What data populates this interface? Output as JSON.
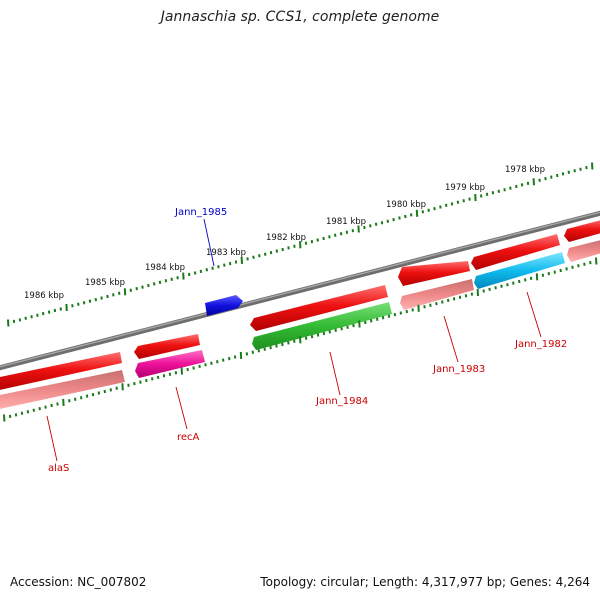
{
  "title": "Jannaschia sp. CCS1, complete genome",
  "accession": "Accession: NC_007802",
  "topology": "Topology: circular; Length: 4,317,977 bp; Genes: 4,264",
  "colors": {
    "backbone": "#7a7a7a",
    "ticks": "#1a7a1a",
    "tick_labels": "#111111",
    "gene_labels": "#cc0000",
    "blue_gene_label": "#0000cc",
    "red_gene": "#ee1111",
    "salmon_gene": "#ee8888",
    "green_gene": "#33bb33",
    "magenta_gene": "#ee1199",
    "cyan_gene": "#11bbee",
    "blue_gene": "#1111dd"
  },
  "scale_labels": [
    "1986 kbp",
    "1985 kbp",
    "1984 kbp",
    "1983 kbp",
    "1982 kbp",
    "1981 kbp",
    "1980 kbp",
    "1979 kbp",
    "1978 kbp"
  ],
  "gene_labels": {
    "jann_1985": "Jann_1985",
    "alas": "alaS",
    "reca": "recA",
    "jann_1984": "Jann_1984",
    "jann_1983": "Jann_1983",
    "jann_1982": "Jann_1982"
  }
}
